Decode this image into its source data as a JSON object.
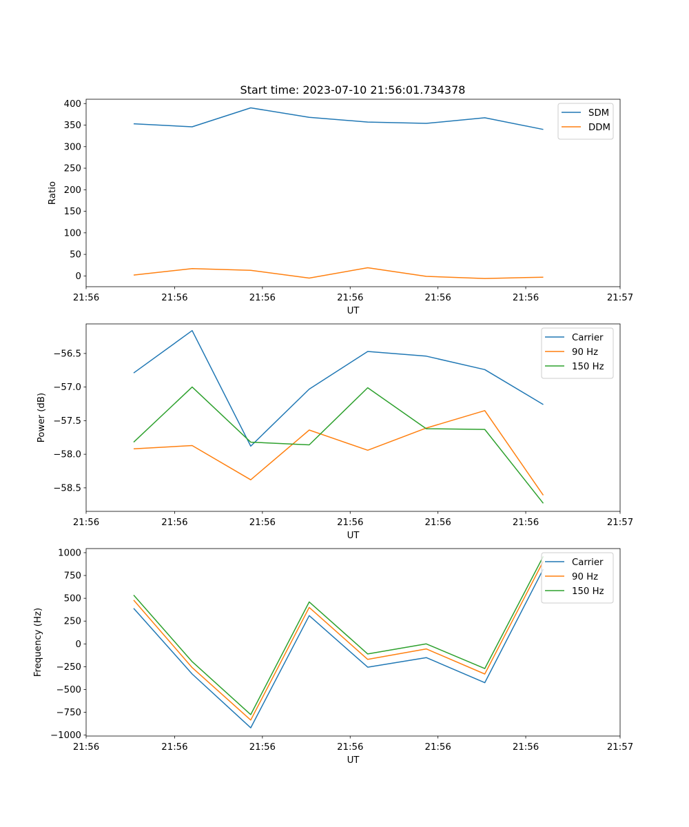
{
  "figure": {
    "title": "Start time: 2023-07-10 21:56:01.734378"
  },
  "x_ticks": [
    "21:56",
    "21:56",
    "21:56",
    "21:56",
    "21:56",
    "21:56",
    "21:56"
  ],
  "chart_data": [
    {
      "type": "line",
      "title": "Start time: 2023-07-10 21:56:01.734378",
      "xlabel": "UT",
      "ylabel": "Ratio",
      "x": [
        1,
        2,
        3,
        4,
        5,
        6,
        7,
        8
      ],
      "xlim": [
        0.1875,
        9.3125
      ],
      "ylim": [
        -25,
        410
      ],
      "yticks": [
        0,
        50,
        100,
        150,
        200,
        250,
        300,
        350,
        400
      ],
      "ytick_labels": [
        "0",
        "50",
        "100",
        "150",
        "200",
        "250",
        "300",
        "350",
        "400"
      ],
      "xtick_values": [
        0.1875,
        1.7,
        3.2,
        4.7,
        6.2,
        7.7,
        9.3125
      ],
      "xtick_labels": [
        "21:56",
        "21:56",
        "21:56",
        "21:56",
        "21:56",
        "21:56",
        "21:57"
      ],
      "legend_position": "upper right",
      "series": [
        {
          "name": "SDM",
          "color": "#1f77b4",
          "values": [
            353,
            346,
            390,
            368,
            357,
            354,
            367,
            340
          ]
        },
        {
          "name": "DDM",
          "color": "#ff7f0e",
          "values": [
            2,
            17,
            13,
            -5,
            19,
            -1,
            -6,
            -3
          ]
        }
      ]
    },
    {
      "type": "line",
      "title": "",
      "xlabel": "UT",
      "ylabel": "Power (dB)",
      "x": [
        1,
        2,
        3,
        4,
        5,
        6,
        7,
        8
      ],
      "xlim": [
        0.1875,
        9.3125
      ],
      "ylim": [
        -58.85,
        -56.06
      ],
      "yticks": [
        -58.5,
        -58.0,
        -57.5,
        -57.0,
        -56.5
      ],
      "ytick_labels": [
        "−58.5",
        "−58.0",
        "−57.5",
        "−57.0",
        "−56.5"
      ],
      "xtick_values": [
        0.1875,
        1.7,
        3.2,
        4.7,
        6.2,
        7.7,
        9.3125
      ],
      "xtick_labels": [
        "21:56",
        "21:56",
        "21:56",
        "21:56",
        "21:56",
        "21:56",
        "21:57"
      ],
      "legend_position": "upper right",
      "series": [
        {
          "name": "Carrier",
          "color": "#1f77b4",
          "values": [
            -56.79,
            -56.16,
            -57.88,
            -57.03,
            -56.47,
            -56.54,
            -56.74,
            -57.26
          ]
        },
        {
          "name": "90 Hz",
          "color": "#ff7f0e",
          "values": [
            -57.92,
            -57.87,
            -58.38,
            -57.64,
            -57.94,
            -57.61,
            -57.35,
            -58.61
          ]
        },
        {
          "name": "150 Hz",
          "color": "#2ca02c",
          "values": [
            -57.82,
            -57.0,
            -57.82,
            -57.86,
            -57.01,
            -57.62,
            -57.63,
            -58.73
          ]
        }
      ]
    },
    {
      "type": "line",
      "title": "",
      "xlabel": "UT",
      "ylabel": "Frequency (Hz)",
      "x": [
        1,
        2,
        3,
        4,
        5,
        6,
        7,
        8
      ],
      "xlim": [
        0.1875,
        9.3125
      ],
      "ylim": [
        -1010,
        1045
      ],
      "yticks": [
        -1000,
        -750,
        -500,
        -250,
        0,
        250,
        500,
        750,
        1000
      ],
      "ytick_labels": [
        "−1000",
        "−750",
        "−500",
        "−250",
        "0",
        "250",
        "500",
        "750",
        "1000"
      ],
      "xtick_values": [
        0.1875,
        1.7,
        3.2,
        4.7,
        6.2,
        7.7,
        9.3125
      ],
      "xtick_labels": [
        "21:56",
        "21:56",
        "21:56",
        "21:56",
        "21:56",
        "21:56",
        "21:57"
      ],
      "legend_position": "upper right",
      "series": [
        {
          "name": "Carrier",
          "color": "#1f77b4",
          "values": [
            390,
            -330,
            -920,
            310,
            -255,
            -150,
            -425,
            820
          ]
        },
        {
          "name": "90 Hz",
          "color": "#ff7f0e",
          "values": [
            480,
            -260,
            -835,
            400,
            -170,
            -55,
            -330,
            905
          ]
        },
        {
          "name": "150 Hz",
          "color": "#2ca02c",
          "values": [
            535,
            -195,
            -775,
            460,
            -110,
            0,
            -270,
            960
          ]
        }
      ]
    }
  ]
}
